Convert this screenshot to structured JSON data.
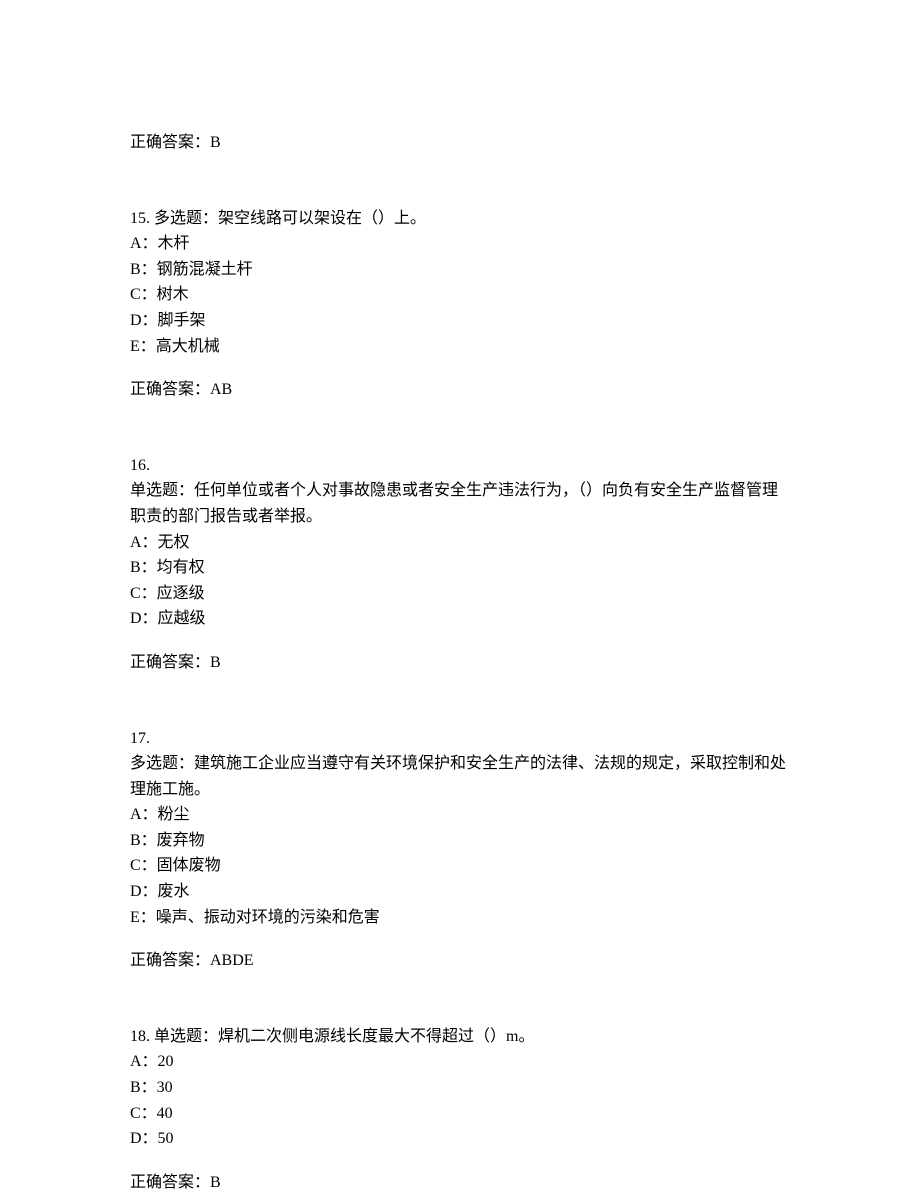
{
  "answer14": {
    "label": "正确答案：B"
  },
  "q15": {
    "number": "15. ",
    "stem": "多选题：架空线路可以架设在（）上。",
    "options": {
      "A": "A：木杆",
      "B": "B：钢筋混凝土杆",
      "C": "C：树木",
      "D": "D：脚手架",
      "E": "E：高大机械"
    },
    "answer": "正确答案：AB"
  },
  "q16": {
    "number": "16.",
    "stem": "单选题：任何单位或者个人对事故隐患或者安全生产违法行为，（）向负有安全生产监督管理职责的部门报告或者举报。",
    "options": {
      "A": "A：无权",
      "B": "B：均有权",
      "C": "C：应逐级",
      "D": "D：应越级"
    },
    "answer": "正确答案：B"
  },
  "q17": {
    "number": "17.",
    "stem": "多选题：建筑施工企业应当遵守有关环境保护和安全生产的法律、法规的规定，采取控制和处理施工施。",
    "options": {
      "A": "A：粉尘",
      "B": "B：废弃物",
      "C": "C：固体废物",
      "D": "D：废水",
      "E": "E：噪声、振动对环境的污染和危害"
    },
    "answer": "正确答案：ABDE"
  },
  "q18": {
    "number": "18. ",
    "stem": "单选题：焊机二次侧电源线长度最大不得超过（）m。",
    "options": {
      "A": "A：20",
      "B": "B：30",
      "C": "C：40",
      "D": "D：50"
    },
    "answer": "正确答案：B"
  }
}
